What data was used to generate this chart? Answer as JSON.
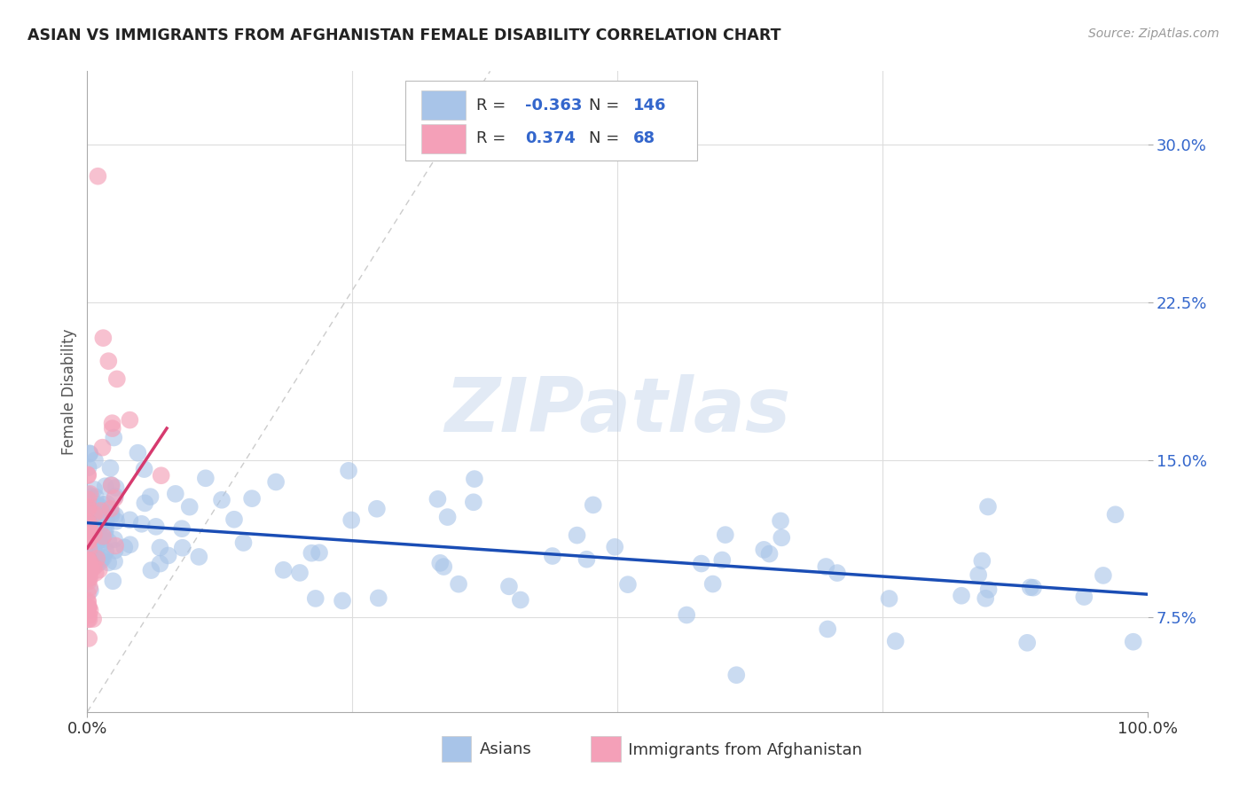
{
  "title": "ASIAN VS IMMIGRANTS FROM AFGHANISTAN FEMALE DISABILITY CORRELATION CHART",
  "source": "Source: ZipAtlas.com",
  "ylabel": "Female Disability",
  "yticks": [
    "7.5%",
    "15.0%",
    "22.5%",
    "30.0%"
  ],
  "ytick_vals": [
    0.075,
    0.15,
    0.225,
    0.3
  ],
  "xlim": [
    0.0,
    1.0
  ],
  "ylim": [
    0.03,
    0.335
  ],
  "blue_color": "#a8c4e8",
  "pink_color": "#f4a0b8",
  "blue_line_color": "#1a4db5",
  "pink_line_color": "#d63a6e",
  "diagonal_color": "#cccccc",
  "watermark": "ZIPatlas",
  "background_color": "#ffffff",
  "grid_color": "#dddddd",
  "blue_r": "-0.363",
  "blue_n": "146",
  "pink_r": "0.374",
  "pink_n": "68",
  "blue_line_x": [
    0.0,
    1.0
  ],
  "blue_line_y": [
    0.12,
    0.086
  ],
  "pink_line_x": [
    0.0,
    0.075
  ],
  "pink_line_y": [
    0.108,
    0.165
  ]
}
